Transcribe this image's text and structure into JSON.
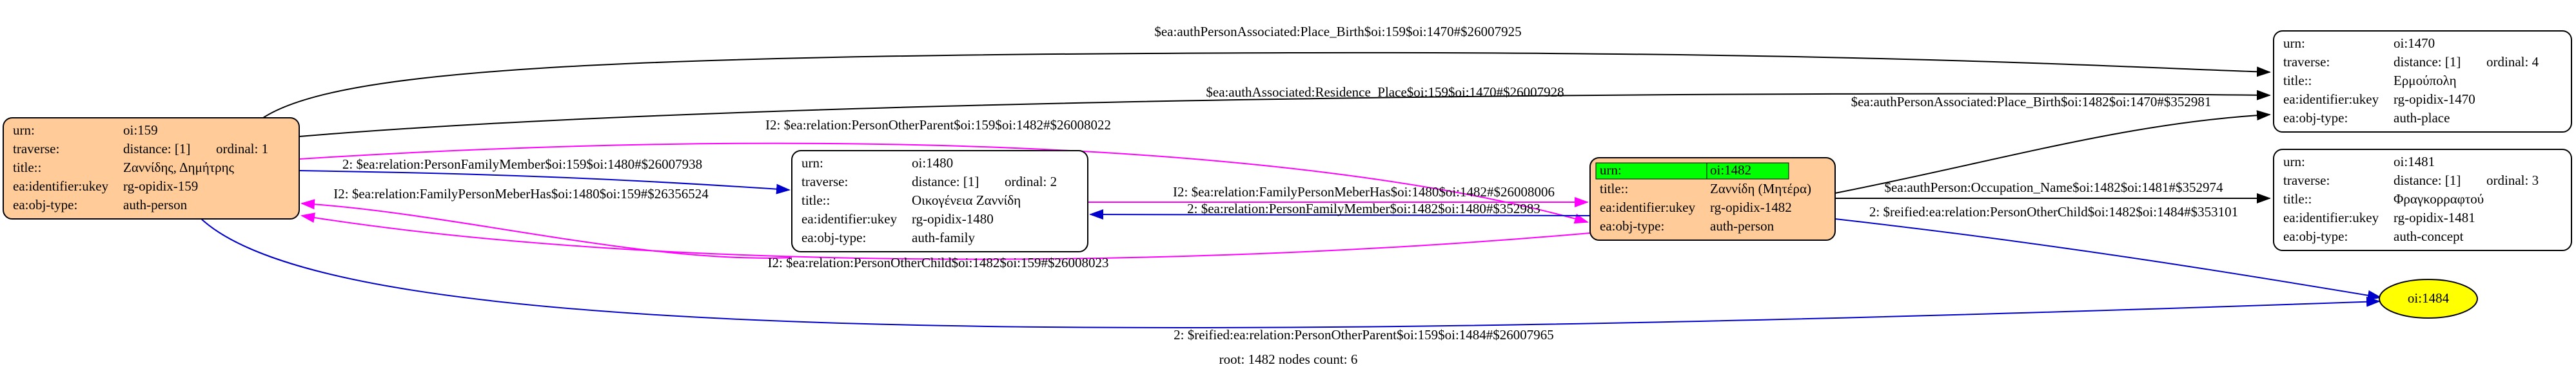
{
  "nodes": [
    {
      "rows": [
        [
          "urn:",
          "oi:159"
        ],
        [
          "traverse:",
          "distance: [1]",
          "ordinal: 1"
        ],
        [
          "title::",
          "Ζαννίδης, Δημήτρης"
        ],
        [
          "ea:identifier:ukey",
          "rg-opidix-159"
        ],
        [
          "ea:obj-type:",
          "auth-person"
        ]
      ]
    },
    {
      "rows": [
        [
          "urn:",
          "oi:1480"
        ],
        [
          "traverse:",
          "distance: [1]",
          "ordinal: 2"
        ],
        [
          "title::",
          "Οικογένεια Ζαννίδη"
        ],
        [
          "ea:identifier:ukey",
          "rg-opidix-1480"
        ],
        [
          "ea:obj-type:",
          "auth-family"
        ]
      ]
    },
    {
      "rows": [
        [
          "urn:",
          "oi:1482"
        ],
        [
          "title::",
          "Ζαννίδη (Μητέρα)"
        ],
        [
          "ea:identifier:ukey",
          "rg-opidix-1482"
        ],
        [
          "ea:obj-type:",
          "auth-person"
        ]
      ]
    },
    {
      "rows": [
        [
          "urn:",
          "oi:1470"
        ],
        [
          "traverse:",
          "distance: [1]",
          "ordinal: 4"
        ],
        [
          "title::",
          "Ερμούπολη"
        ],
        [
          "ea:identifier:ukey",
          "rg-opidix-1470"
        ],
        [
          "ea:obj-type:",
          "auth-place"
        ]
      ]
    },
    {
      "rows": [
        [
          "urn:",
          "oi:1481"
        ],
        [
          "traverse:",
          "distance: [1]",
          "ordinal: 3"
        ],
        [
          "title::",
          "Φραγκορραφτού"
        ],
        [
          "ea:identifier:ukey",
          "rg-opidix-1481"
        ],
        [
          "ea:obj-type:",
          "auth-concept"
        ]
      ]
    },
    {
      "label": "oi:1484"
    }
  ],
  "edges": [
    "$ea:authPersonAssociated:Place_Birth$oi:159$oi:1470#$26007925",
    "$ea:authAssociated:Residence_Place$oi:159$oi:1470#$26007928",
    "$ea:authPersonAssociated:Place_Birth$oi:1482$oi:1470#$352981",
    "I2: $ea:relation:PersonOtherParent$oi:159$oi:1482#$26008022",
    "2: $ea:relation:PersonFamilyMember$oi:159$oi:1480#$26007938",
    "I2: $ea:relation:FamilyPersonMeberHas$oi:1480$oi:159#$26356524",
    "I2: $ea:relation:FamilyPersonMeberHas$oi:1480$oi:1482#$26008006",
    "2: $ea:relation:PersonFamilyMember$oi:1482$oi:1480#$352983",
    "I2: $ea:relation:PersonOtherChild$oi:1482$oi:159#$26008023",
    "$ea:authPerson:Occupation_Name$oi:1482$oi:1481#$352974",
    "2: $reified:ea:relation:PersonOtherChild$oi:1482$oi:1484#$353101",
    "2: $reified:ea:relation:PersonOtherParent$oi:159$oi:1484#$26007965"
  ],
  "footer": "root: 1482 nodes count: 6"
}
